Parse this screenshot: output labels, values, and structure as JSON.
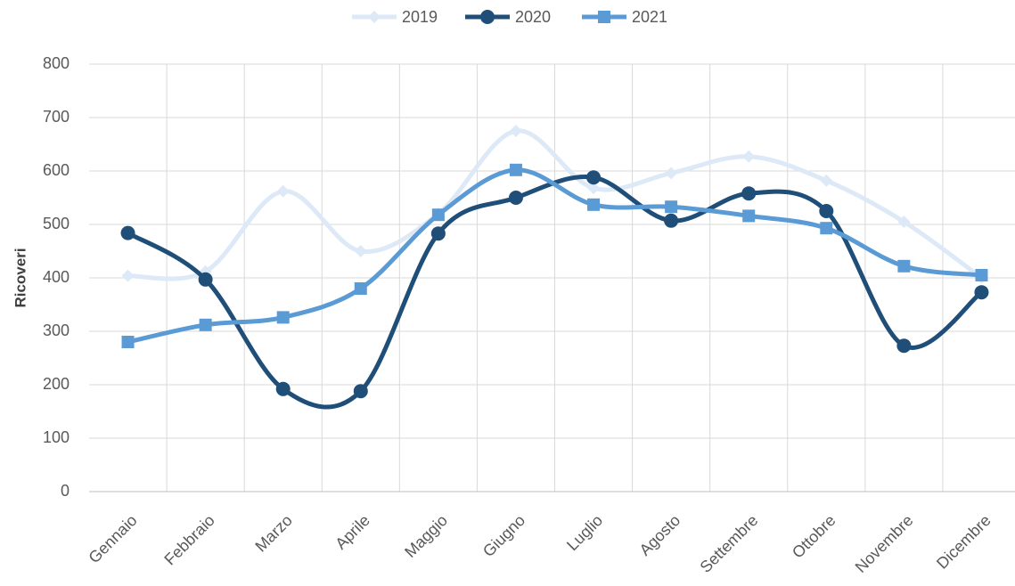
{
  "chart_data": {
    "type": "line",
    "y_label": "Ricoveri",
    "categories": [
      "Gennaio",
      "Febbraio",
      "Marzo",
      "Aprile",
      "Maggio",
      "Giugno",
      "Luglio",
      "Agosto",
      "Settembre",
      "Ottobre",
      "Novembre",
      "Dicembre"
    ],
    "series": [
      {
        "name": "2019",
        "color": "#dde9f7",
        "marker": "diamond",
        "values": [
          404,
          412,
          562,
          450,
          520,
          675,
          568,
          596,
          627,
          582,
          505,
          400
        ]
      },
      {
        "name": "2020",
        "color": "#1f4e79",
        "marker": "circle",
        "values": [
          484,
          397,
          192,
          188,
          483,
          550,
          588,
          507,
          558,
          525,
          273,
          373
        ]
      },
      {
        "name": "2021",
        "color": "#5b9bd5",
        "marker": "square",
        "values": [
          280,
          312,
          326,
          380,
          518,
          602,
          537,
          533,
          516,
          493,
          422,
          405
        ]
      }
    ],
    "ylim": [
      0,
      800
    ],
    "yticks": [
      0,
      100,
      200,
      300,
      400,
      500,
      600,
      700,
      800
    ],
    "grid": true,
    "smooth": true,
    "legend": "top"
  }
}
